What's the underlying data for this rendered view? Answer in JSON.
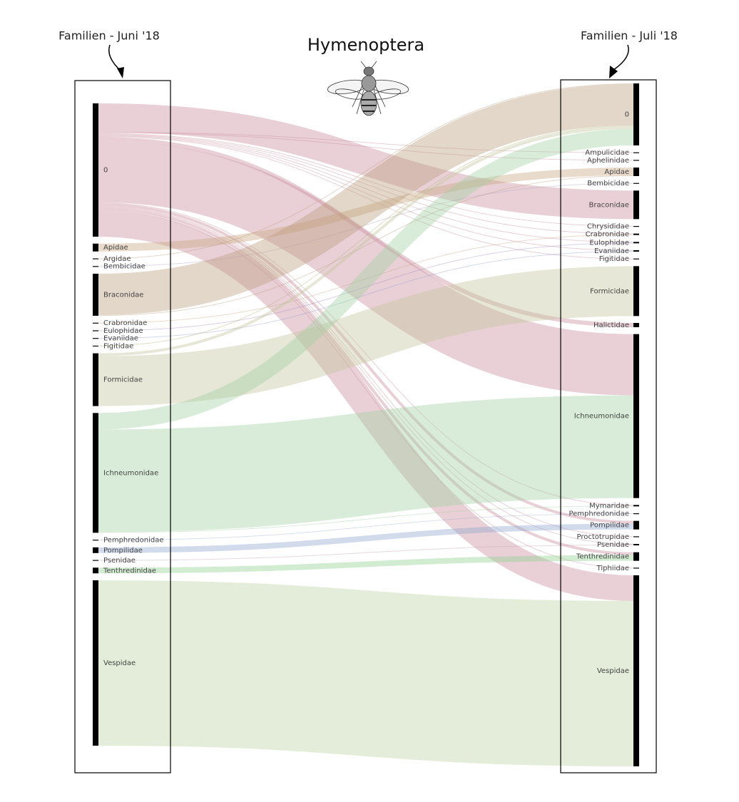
{
  "chart_data": {
    "type": "sankey",
    "title": "Hymenoptera",
    "annotations": [
      "Familien - Juni '18",
      "Familien - Juli '18"
    ],
    "nodes": [
      {
        "name": "0",
        "column": 0,
        "color": "#c98a9c"
      },
      {
        "name": "Apidae",
        "column": 0,
        "color": "#c9a47e"
      },
      {
        "name": "Argidae",
        "column": 0,
        "color": "#b89a7a"
      },
      {
        "name": "Bembicidae",
        "column": 0,
        "color": "#b0a0c0"
      },
      {
        "name": "Braconidae",
        "column": 0,
        "color": "#b89a7a"
      },
      {
        "name": "Crabronidae",
        "column": 0,
        "color": "#c9a47e"
      },
      {
        "name": "Eulophidae",
        "column": 0,
        "color": "#a08ac0"
      },
      {
        "name": "Evaniidae",
        "column": 0,
        "color": "#8f9fd0"
      },
      {
        "name": "Figitidae",
        "column": 0,
        "color": "#b0b070"
      },
      {
        "name": "Formicidae",
        "column": 0,
        "color": "#c4c49a"
      },
      {
        "name": "Ichneumonidae",
        "column": 0,
        "color": "#9fcf9f"
      },
      {
        "name": "Pemphredonidae",
        "column": 0,
        "color": "#a0b0d0"
      },
      {
        "name": "Pompilidae",
        "column": 0,
        "color": "#8fa5d0"
      },
      {
        "name": "Psenidae",
        "column": 0,
        "color": "#c0a0b0"
      },
      {
        "name": "Tenthredinidae",
        "column": 0,
        "color": "#8fcf8f"
      },
      {
        "name": "Vespidae",
        "column": 0,
        "color": "#bcd3a0"
      },
      {
        "name": "0",
        "column": 1,
        "color": "#b89a7a"
      },
      {
        "name": "Ampulicidae",
        "column": 1,
        "color": "#c98a9c"
      },
      {
        "name": "Aphelinidae",
        "column": 1,
        "color": "#c98a9c"
      },
      {
        "name": "Apidae",
        "column": 1,
        "color": "#c9a47e"
      },
      {
        "name": "Bembicidae",
        "column": 1,
        "color": "#b0a0c0"
      },
      {
        "name": "Braconidae",
        "column": 1,
        "color": "#b89a7a"
      },
      {
        "name": "Chrysididae",
        "column": 1,
        "color": "#c98a9c"
      },
      {
        "name": "Crabronidae",
        "column": 1,
        "color": "#c9a47e"
      },
      {
        "name": "Eulophidae",
        "column": 1,
        "color": "#a08ac0"
      },
      {
        "name": "Evaniidae",
        "column": 1,
        "color": "#8f9fd0"
      },
      {
        "name": "Figitidae",
        "column": 1,
        "color": "#b0b070"
      },
      {
        "name": "Formicidae",
        "column": 1,
        "color": "#c4c49a"
      },
      {
        "name": "Halictidae",
        "column": 1,
        "color": "#c98a9c"
      },
      {
        "name": "Ichneumonidae",
        "column": 1,
        "color": "#9fcf9f"
      },
      {
        "name": "Mymaridae",
        "column": 1,
        "color": "#9fcf9f"
      },
      {
        "name": "Pemphredonidae",
        "column": 1,
        "color": "#a0b0d0"
      },
      {
        "name": "Pompilidae",
        "column": 1,
        "color": "#8fa5d0"
      },
      {
        "name": "Proctotrupidae",
        "column": 1,
        "color": "#c98a9c"
      },
      {
        "name": "Psenidae",
        "column": 1,
        "color": "#c0a0b0"
      },
      {
        "name": "Tenthredinidae",
        "column": 1,
        "color": "#8fcf8f"
      },
      {
        "name": "Tiphiidae",
        "column": 1,
        "color": "#c98a9c"
      },
      {
        "name": "Vespidae",
        "column": 1,
        "color": "#bcd3a0"
      }
    ],
    "links": [
      {
        "source": 0,
        "target": 21,
        "value": 40
      },
      {
        "source": 0,
        "target": 17,
        "value": 1
      },
      {
        "source": 0,
        "target": 18,
        "value": 1
      },
      {
        "source": 0,
        "target": 22,
        "value": 1
      },
      {
        "source": 0,
        "target": 23,
        "value": 1
      },
      {
        "source": 0,
        "target": 24,
        "value": 1
      },
      {
        "source": 0,
        "target": 25,
        "value": 1
      },
      {
        "source": 0,
        "target": 26,
        "value": 1
      },
      {
        "source": 0,
        "target": 28,
        "value": 6
      },
      {
        "source": 0,
        "target": 29,
        "value": 86
      },
      {
        "source": 0,
        "target": 30,
        "value": 1
      },
      {
        "source": 0,
        "target": 32,
        "value": 4
      },
      {
        "source": 0,
        "target": 33,
        "value": 1
      },
      {
        "source": 0,
        "target": 34,
        "value": 1
      },
      {
        "source": 0,
        "target": 35,
        "value": 4
      },
      {
        "source": 0,
        "target": 36,
        "value": 1
      },
      {
        "source": 0,
        "target": 37,
        "value": 36
      },
      {
        "source": 1,
        "target": 19,
        "value": 11
      },
      {
        "source": 2,
        "target": 16,
        "value": 1
      },
      {
        "source": 3,
        "target": 20,
        "value": 1
      },
      {
        "source": 4,
        "target": 16,
        "value": 58
      },
      {
        "source": 4,
        "target": 19,
        "value": 1
      },
      {
        "source": 5,
        "target": 23,
        "value": 1
      },
      {
        "source": 6,
        "target": 24,
        "value": 1
      },
      {
        "source": 7,
        "target": 25,
        "value": 1
      },
      {
        "source": 8,
        "target": 16,
        "value": 1
      },
      {
        "source": 9,
        "target": 16,
        "value": 4
      },
      {
        "source": 9,
        "target": 27,
        "value": 70
      },
      {
        "source": 10,
        "target": 16,
        "value": 23
      },
      {
        "source": 10,
        "target": 29,
        "value": 144
      },
      {
        "source": 10,
        "target": 30,
        "value": 1
      },
      {
        "source": 11,
        "target": 31,
        "value": 1
      },
      {
        "source": 12,
        "target": 32,
        "value": 8
      },
      {
        "source": 13,
        "target": 34,
        "value": 1
      },
      {
        "source": 14,
        "target": 35,
        "value": 8
      },
      {
        "source": 15,
        "target": 37,
        "value": 232
      }
    ]
  }
}
